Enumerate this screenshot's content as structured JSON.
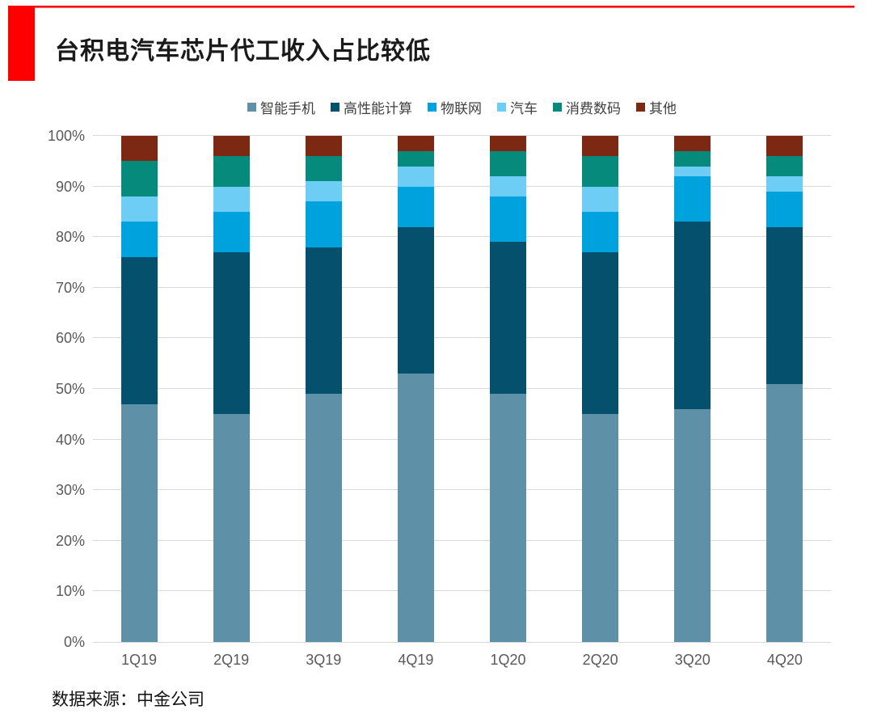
{
  "header": {
    "title": "台积电汽车芯片代工收入占比较低",
    "accent_color": "#fe0000"
  },
  "footer": {
    "source": "数据来源：中金公司"
  },
  "chart_data": {
    "type": "bar",
    "stacked": true,
    "title": "台积电汽车芯片代工收入占比较低",
    "xlabel": "",
    "ylabel": "",
    "ylim": [
      0,
      100
    ],
    "y_tick_unit": "%",
    "y_ticks": [
      "0%",
      "10%",
      "20%",
      "30%",
      "40%",
      "50%",
      "60%",
      "70%",
      "80%",
      "90%",
      "100%"
    ],
    "grid": true,
    "legend_position": "top",
    "categories": [
      "1Q19",
      "2Q19",
      "3Q19",
      "4Q19",
      "1Q20",
      "2Q20",
      "3Q20",
      "4Q20"
    ],
    "series": [
      {
        "name": "智能手机",
        "color": "#5e91a8",
        "values": [
          47,
          45,
          49,
          53,
          49,
          45,
          46,
          51
        ]
      },
      {
        "name": "高性能计算",
        "color": "#05516d",
        "values": [
          29,
          32,
          29,
          29,
          30,
          32,
          37,
          31
        ]
      },
      {
        "name": "物联网",
        "color": "#00a2dd",
        "values": [
          7,
          8,
          9,
          8,
          9,
          8,
          9,
          7
        ]
      },
      {
        "name": "汽车",
        "color": "#6ecdf4",
        "values": [
          5,
          5,
          4,
          4,
          4,
          5,
          2,
          3
        ]
      },
      {
        "name": "消费数码",
        "color": "#068a7c",
        "values": [
          7,
          6,
          5,
          3,
          5,
          6,
          3,
          4
        ]
      },
      {
        "name": "其他",
        "color": "#7c2813",
        "values": [
          5,
          4,
          4,
          3,
          3,
          4,
          3,
          4
        ]
      }
    ],
    "colors": {
      "gridline": "#d9d9d9",
      "axis_label": "#595959"
    }
  }
}
